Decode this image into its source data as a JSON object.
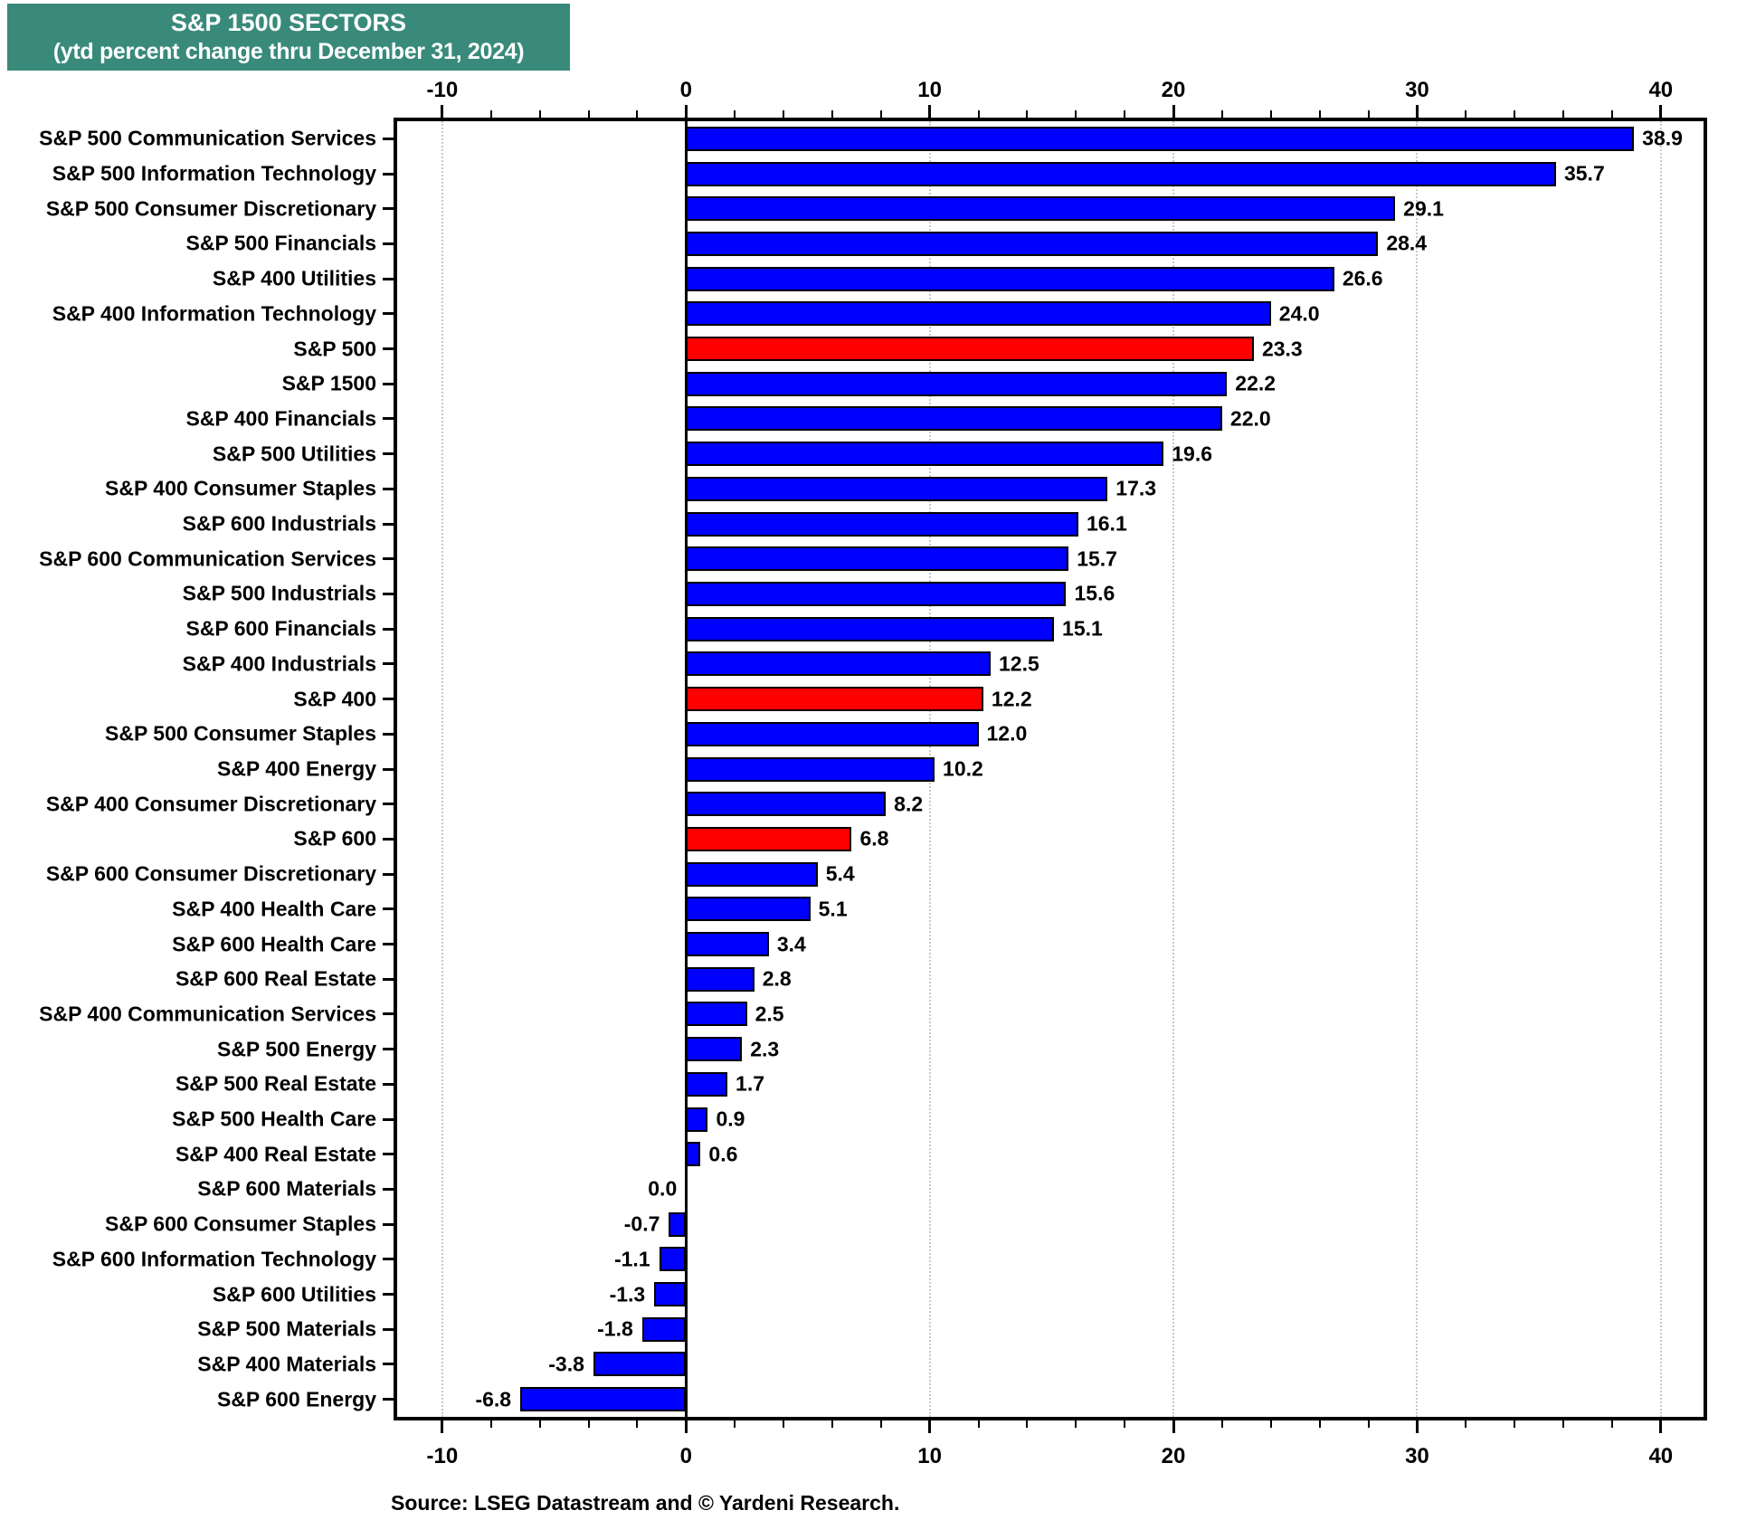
{
  "title": {
    "line1": "S&P 1500 SECTORS",
    "line2": "(ytd percent change thru December 31, 2024)"
  },
  "source": "Source: LSEG Datastream and © Yardeni Research.",
  "colors": {
    "title_bg": "#398A7A",
    "bar_blue": "#0000FE",
    "bar_red": "#FE0000",
    "grid": "#c9c9c9",
    "axis": "#000000"
  },
  "chart_data": {
    "type": "bar",
    "orientation": "horizontal",
    "title": "S&P 1500 SECTORS (ytd percent change thru December 31, 2024)",
    "xlabel": "ytd percent change",
    "ylabel": "",
    "xlim": [
      -12,
      41.9
    ],
    "x_major_ticks": [
      -10,
      0,
      10,
      20,
      30,
      40
    ],
    "x_minor_tick_step": 2,
    "gridlines_at": [
      -10,
      10,
      20,
      30,
      40
    ],
    "grid": "dotted-vertical",
    "legend": "none",
    "value_labels": "one-decimal at bar ends",
    "categories": [
      "S&P 500 Communication Services",
      "S&P 500 Information Technology",
      "S&P 500 Consumer Discretionary",
      "S&P 500 Financials",
      "S&P 400 Utilities",
      "S&P 400 Information Technology",
      "S&P 500",
      "S&P 1500",
      "S&P 400 Financials",
      "S&P 500 Utilities",
      "S&P 400 Consumer Staples",
      "S&P 600 Industrials",
      "S&P 600 Communication Services",
      "S&P 500 Industrials",
      "S&P 600 Financials",
      "S&P 400 Industrials",
      "S&P 400",
      "S&P 500 Consumer Staples",
      "S&P 400 Energy",
      "S&P 400 Consumer Discretionary",
      "S&P 600",
      "S&P 600 Consumer Discretionary",
      "S&P 400 Health Care",
      "S&P 600 Health Care",
      "S&P 600 Real Estate",
      "S&P 400 Communication Services",
      "S&P 500 Energy",
      "S&P 500 Real Estate",
      "S&P 500 Health Care",
      "S&P 400 Real Estate",
      "S&P 600 Materials",
      "S&P 600 Consumer Staples",
      "S&P 600 Information Technology",
      "S&P 600 Utilities",
      "S&P 500 Materials",
      "S&P 400 Materials",
      "S&P 600 Energy"
    ],
    "values": [
      38.9,
      35.7,
      29.1,
      28.4,
      26.6,
      24.0,
      23.3,
      22.2,
      22.0,
      19.6,
      17.3,
      16.1,
      15.7,
      15.6,
      15.1,
      12.5,
      12.2,
      12.0,
      10.2,
      8.2,
      6.8,
      5.4,
      5.1,
      3.4,
      2.8,
      2.5,
      2.3,
      1.7,
      0.9,
      0.6,
      0.0,
      -0.7,
      -1.1,
      -1.3,
      -1.8,
      -3.8,
      -6.8
    ],
    "bar_colors": [
      "blue",
      "blue",
      "blue",
      "blue",
      "blue",
      "blue",
      "red",
      "blue",
      "blue",
      "blue",
      "blue",
      "blue",
      "blue",
      "blue",
      "blue",
      "blue",
      "red",
      "blue",
      "blue",
      "blue",
      "red",
      "blue",
      "blue",
      "blue",
      "blue",
      "blue",
      "blue",
      "blue",
      "blue",
      "blue",
      "blue",
      "blue",
      "blue",
      "blue",
      "blue",
      "blue",
      "blue"
    ]
  }
}
